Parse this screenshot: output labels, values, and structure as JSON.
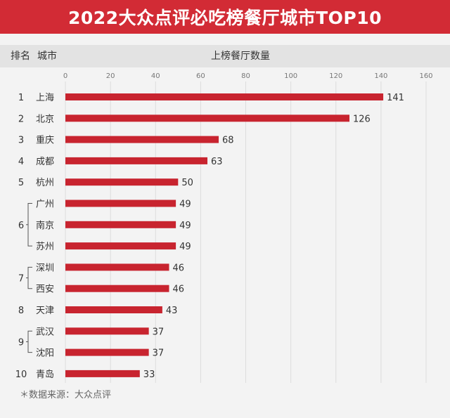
{
  "title": "2022大众点评必吃榜餐厅城市TOP10",
  "header": {
    "rank_label": "排名",
    "city_label": "城市",
    "count_label": "上榜餐厅数量"
  },
  "footnote": "＊数据来源：大众点评",
  "colors": {
    "banner": "#d22b35",
    "bar": "#c8242f"
  },
  "chart_data": {
    "type": "bar",
    "orientation": "horizontal",
    "title": "2022大众点评必吃榜餐厅城市TOP10",
    "xlabel": "上榜餐厅数量",
    "xlim": [
      0,
      160
    ],
    "xticks": [
      "0",
      "20",
      "40",
      "60",
      "80",
      "100",
      "120",
      "140",
      "160"
    ],
    "grid": true,
    "rank_groups": [
      {
        "rank": "1",
        "cities": [
          "上海"
        ]
      },
      {
        "rank": "2",
        "cities": [
          "北京"
        ]
      },
      {
        "rank": "3",
        "cities": [
          "重庆"
        ]
      },
      {
        "rank": "4",
        "cities": [
          "成都"
        ]
      },
      {
        "rank": "5",
        "cities": [
          "杭州"
        ]
      },
      {
        "rank": "6",
        "cities": [
          "广州",
          "南京",
          "苏州"
        ]
      },
      {
        "rank": "7",
        "cities": [
          "深圳",
          "西安"
        ]
      },
      {
        "rank": "8",
        "cities": [
          "天津"
        ]
      },
      {
        "rank": "9",
        "cities": [
          "武汉",
          "沈阳"
        ]
      },
      {
        "rank": "10",
        "cities": [
          "青岛"
        ]
      }
    ],
    "categories": [
      "上海",
      "北京",
      "重庆",
      "成都",
      "杭州",
      "广州",
      "南京",
      "苏州",
      "深圳",
      "西安",
      "天津",
      "武汉",
      "沈阳",
      "青岛"
    ],
    "values": [
      141,
      126,
      68,
      63,
      50,
      49,
      49,
      49,
      46,
      46,
      43,
      37,
      37,
      33
    ]
  }
}
